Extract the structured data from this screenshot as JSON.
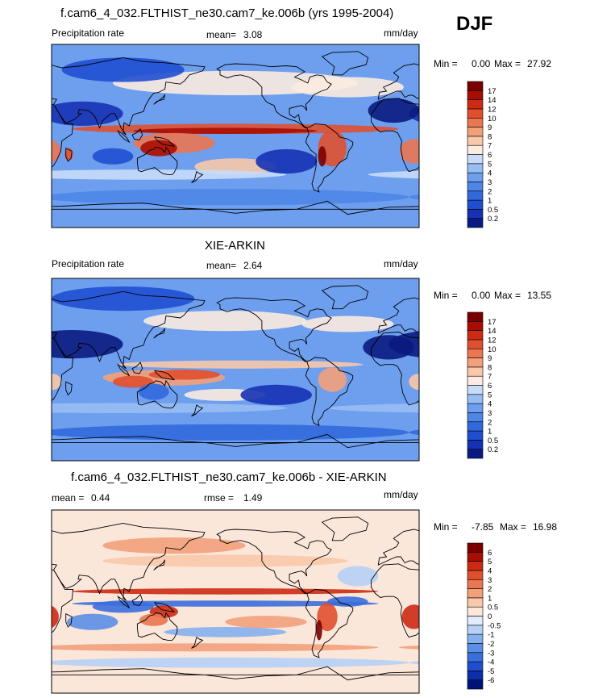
{
  "season": "DJF",
  "panels": [
    {
      "title": "f.cam6_4_032.FLTHIST_ne30.cam7_ke.006b (yrs 1995-2004)",
      "left_label": "Precipitation rate",
      "stat_label": "mean=",
      "stat_value": "3.08",
      "units": "mm/day",
      "min_label": "Min =",
      "min_value": "0.00",
      "max_label": "Max =",
      "max_value": "27.92",
      "color_levels": [
        "0.2",
        "0.5",
        "1",
        "2",
        "3",
        "4",
        "5",
        "6",
        "7",
        "8",
        "9",
        "10",
        "12",
        "14",
        "17"
      ],
      "colors": [
        "#0a1a80",
        "#1632b4",
        "#1f4fd0",
        "#3169dc",
        "#4d86e6",
        "#6d9fee",
        "#98bdf4",
        "#c8dcf8",
        "#fbebe0",
        "#f8c8aa",
        "#f2a07a",
        "#ea7652",
        "#e0502f",
        "#cc2a13",
        "#a80d04",
        "#7a0000"
      ]
    },
    {
      "title": "XIE-ARKIN",
      "left_label": "Precipitation rate",
      "stat_label": "mean=",
      "stat_value": "2.64",
      "units": "mm/day",
      "min_label": "Min =",
      "min_value": "0.00",
      "max_label": "Max =",
      "max_value": "13.55",
      "color_levels": [
        "0.2",
        "0.5",
        "1",
        "2",
        "3",
        "4",
        "5",
        "6",
        "7",
        "8",
        "9",
        "10",
        "12",
        "14",
        "17"
      ],
      "colors": [
        "#0a1a80",
        "#1632b4",
        "#1f4fd0",
        "#3169dc",
        "#4d86e6",
        "#6d9fee",
        "#98bdf4",
        "#c8dcf8",
        "#fbebe0",
        "#f8c8aa",
        "#f2a07a",
        "#ea7652",
        "#e0502f",
        "#cc2a13",
        "#a80d04",
        "#7a0000"
      ]
    },
    {
      "title": "f.cam6_4_032.FLTHIST_ne30.cam7_ke.006b - XIE-ARKIN",
      "left_label": "mean =",
      "left_value": "0.44",
      "stat_label": "rmse =",
      "stat_value": "1.49",
      "units": "mm/day",
      "min_label": "Min =",
      "min_value": "-7.85",
      "max_label": "Max =",
      "max_value": "16.98",
      "color_levels": [
        "-6",
        "-5",
        "-4",
        "-3",
        "-2",
        "-1",
        "-0.5",
        "0",
        "0.5",
        "1",
        "2",
        "3",
        "4",
        "5",
        "6"
      ],
      "colors": [
        "#00127a",
        "#0a2fa8",
        "#1f4fd0",
        "#3a6edc",
        "#5b8ee6",
        "#85b0f0",
        "#b6d0f6",
        "#e2ecfa",
        "#fbe6da",
        "#f8c8aa",
        "#f2a07a",
        "#ea7652",
        "#e0502f",
        "#cc2a13",
        "#a80d04",
        "#7a0000"
      ]
    }
  ],
  "chart_data": [
    {
      "type": "heatmap",
      "title": "f.cam6_4_032.FLTHIST_ne30.cam7_ke.006b (yrs 1995-2004)",
      "variable": "Precipitation rate",
      "units": "mm/day",
      "mean": 3.08,
      "min": 0.0,
      "max": 27.92,
      "contour_levels": [
        0.2,
        0.5,
        1,
        2,
        3,
        4,
        5,
        6,
        7,
        8,
        9,
        10,
        12,
        14,
        17
      ]
    },
    {
      "type": "heatmap",
      "title": "XIE-ARKIN",
      "variable": "Precipitation rate",
      "units": "mm/day",
      "mean": 2.64,
      "min": 0.0,
      "max": 13.55,
      "contour_levels": [
        0.2,
        0.5,
        1,
        2,
        3,
        4,
        5,
        6,
        7,
        8,
        9,
        10,
        12,
        14,
        17
      ]
    },
    {
      "type": "heatmap",
      "title": "f.cam6_4_032.FLTHIST_ne30.cam7_ke.006b - XIE-ARKIN",
      "units": "mm/day",
      "mean": 0.44,
      "rmse": 1.49,
      "min": -7.85,
      "max": 16.98,
      "contour_levels": [
        -6,
        -5,
        -4,
        -3,
        -2,
        -1,
        -0.5,
        0,
        0.5,
        1,
        2,
        3,
        4,
        5,
        6
      ]
    }
  ]
}
